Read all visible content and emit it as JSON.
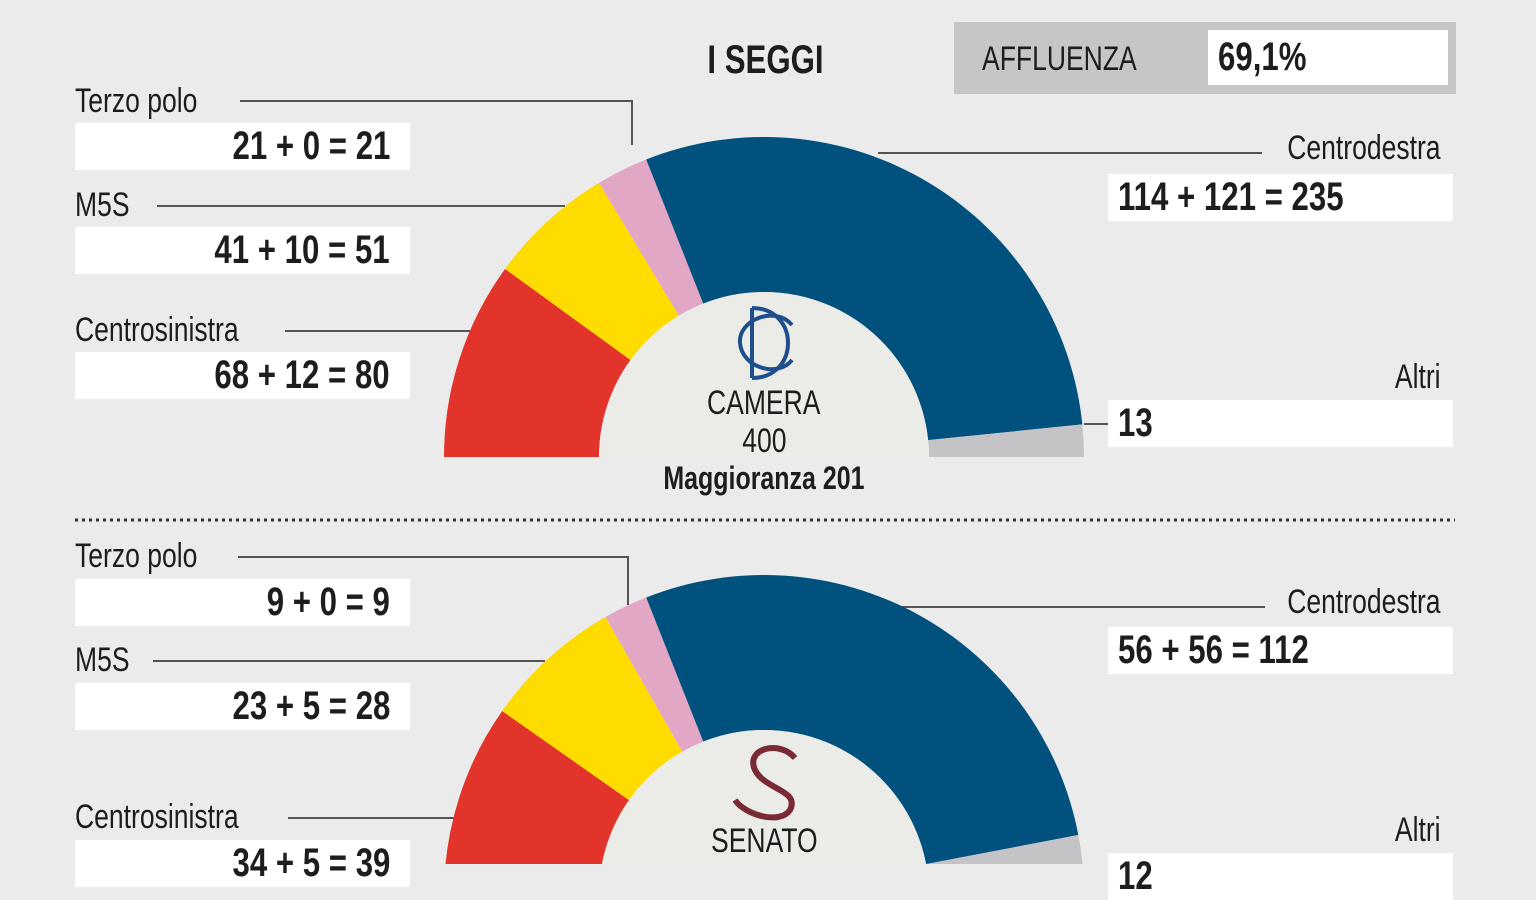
{
  "title": "I SEGGI",
  "affluenza": {
    "label": "AFFLUENZA",
    "value": "69,1%"
  },
  "colors": {
    "Centrosinistra": "#e3342c",
    "M5S": "#fedc00",
    "Terzo polo": "#e2a7c4",
    "Centrodestra": "#00517e",
    "Altri": "#c4c4c6",
    "center": "#ebebe7"
  },
  "chart_data": [
    {
      "type": "pie",
      "subtype": "half-donut",
      "name": "CAMERA",
      "total": "400",
      "majority": "Maggioranza 201",
      "logo": "camera-logo",
      "categories": [
        "Centrosinistra",
        "M5S",
        "Terzo polo",
        "Centrodestra",
        "Altri"
      ],
      "values": [
        80,
        51,
        21,
        235,
        13
      ],
      "labels": [
        "68 + 12 = 80",
        "41 + 10 = 51",
        "21 + 0 = 21",
        "114 + 121 = 235",
        "13"
      ]
    },
    {
      "type": "pie",
      "subtype": "half-donut",
      "name": "SENATO",
      "logo": "senato-logo",
      "categories": [
        "Centrosinistra",
        "M5S",
        "Terzo polo",
        "Centrodestra",
        "Altri"
      ],
      "values": [
        39,
        28,
        9,
        112,
        12
      ],
      "labels": [
        "34 + 5 = 39",
        "23 + 5 = 28",
        "9 + 0 = 9",
        "56 + 56 = 112",
        "12"
      ]
    }
  ]
}
